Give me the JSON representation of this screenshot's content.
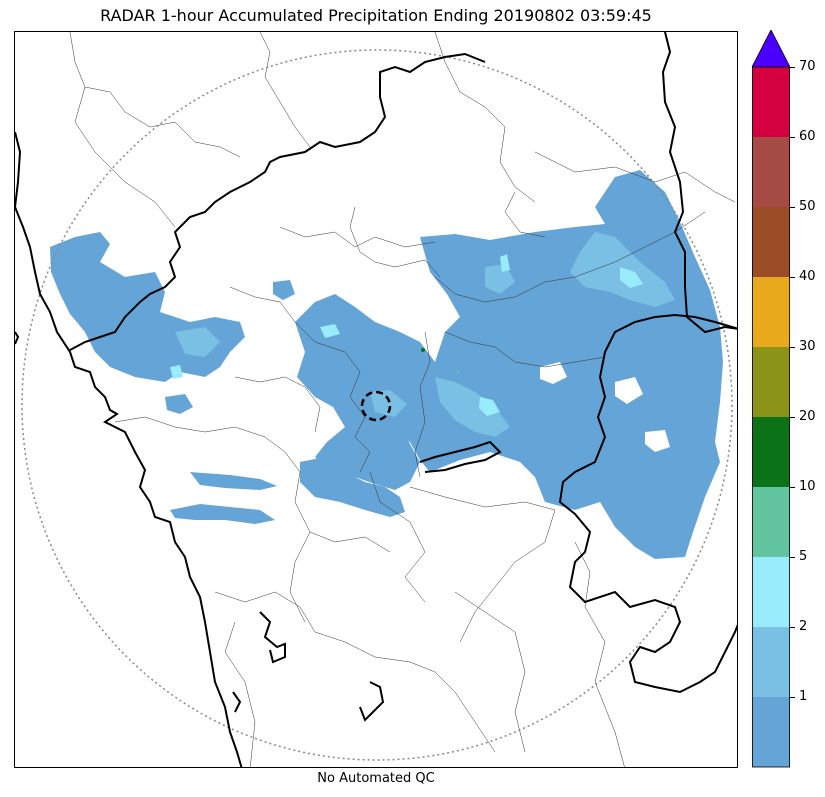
{
  "title": "RADAR 1-hour Accumulated Precipitation Ending 20190802 03:59:45",
  "caption": "No Automated QC",
  "colorbar": {
    "ticks": [
      "1",
      "2",
      "5",
      "10",
      "20",
      "30",
      "40",
      "50",
      "60",
      "70"
    ],
    "colors": [
      "#64a4d6",
      "#79c0e4",
      "#98ecfb",
      "#62c59f",
      "#0b7218",
      "#8b9319",
      "#e8a91c",
      "#9a4d26",
      "#a54a44",
      "#d4003f"
    ],
    "extend_color": "#4b00ff"
  },
  "map": {
    "range_ring_color": "#888888",
    "radar_marker_style": "dashed-circle",
    "precip_base_color": "#64a4d6",
    "precip_light_color": "#79c0e4",
    "precip_cyan_color": "#98ecfb"
  }
}
